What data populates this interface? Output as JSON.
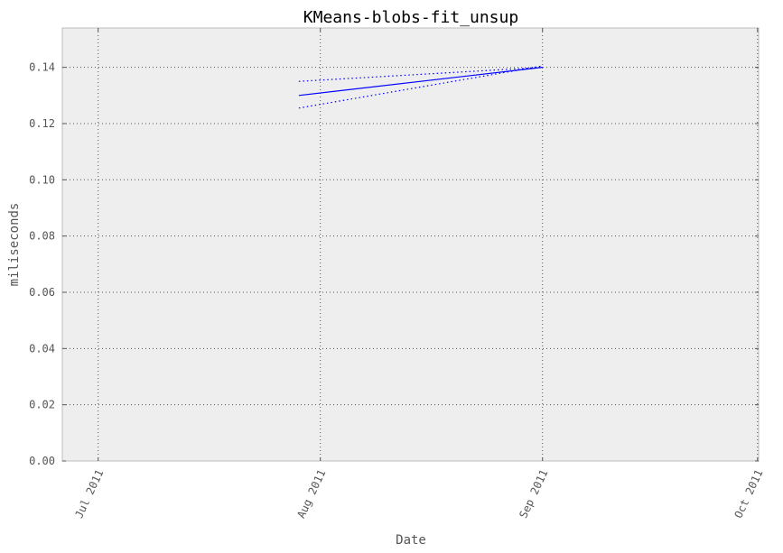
{
  "chart_data": {
    "type": "line",
    "title": "KMeans-blobs-fit_unsup",
    "xlabel": "Date",
    "ylabel": "miliseconds",
    "x_ticks": [
      "Jul 2011",
      "Aug 2011",
      "Sep 2011",
      "Oct 2011"
    ],
    "y_ticks": [
      "0.00",
      "0.02",
      "0.04",
      "0.06",
      "0.08",
      "0.10",
      "0.12",
      "0.14"
    ],
    "xlim": [
      "2011-06-26",
      "2011-10-01"
    ],
    "ylim": [
      0,
      0.154
    ],
    "grid": true,
    "series": [
      {
        "role": "mean",
        "style": "solid",
        "x": [
          "2011-07-29",
          "2011-09-01"
        ],
        "values": [
          0.13,
          0.14
        ]
      },
      {
        "role": "upper",
        "style": "dotted",
        "x": [
          "2011-07-29",
          "2011-09-01"
        ],
        "values": [
          0.135,
          0.14
        ]
      },
      {
        "role": "lower",
        "style": "dotted",
        "x": [
          "2011-07-29",
          "2011-09-01"
        ],
        "values": [
          0.1255,
          0.1405
        ]
      }
    ],
    "colors": {
      "line": "#0000ff",
      "plot_background": "#eeeeee",
      "grid": "#555555",
      "frame": "#bcbcbc"
    }
  }
}
